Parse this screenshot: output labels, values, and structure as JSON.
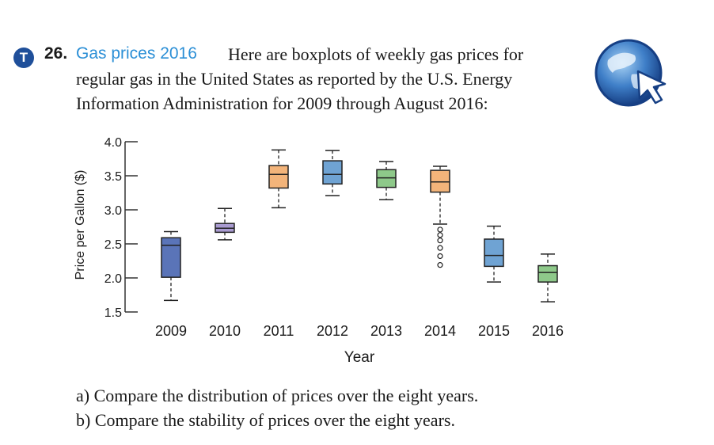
{
  "problem": {
    "badge": "T",
    "number": "26.",
    "title": "Gas prices 2016",
    "intro_line1": "Here are boxplots of weekly gas prices for",
    "intro_line2": "regular gas in the United States as reported by the U.S. Energy",
    "intro_line3": "Information Administration for 2009 through August 2016:",
    "part_a": "a) Compare the distribution of prices over the eight years.",
    "part_b": "b) Compare the stability of prices over the eight years."
  },
  "icons": {
    "globe": "globe-cursor-icon"
  },
  "chart_data": {
    "type": "boxplot",
    "xlabel": "Year",
    "ylabel": "Price per Gallon ($)",
    "ylim": [
      1.5,
      4.0
    ],
    "yticks": [
      "4.0",
      "3.5",
      "3.0",
      "2.5",
      "2.0",
      "1.5"
    ],
    "categories": [
      "2009",
      "2010",
      "2011",
      "2012",
      "2013",
      "2014",
      "2015",
      "2016"
    ],
    "boxes": [
      {
        "year": "2009",
        "min": 1.67,
        "q1": 2.01,
        "median": 2.48,
        "q3": 2.59,
        "max": 2.68,
        "outliers": [],
        "color": "#5a74b8"
      },
      {
        "year": "2010",
        "min": 2.56,
        "q1": 2.67,
        "median": 2.73,
        "q3": 2.8,
        "max": 3.02,
        "outliers": [],
        "color": "#a99bd0"
      },
      {
        "year": "2011",
        "min": 3.03,
        "q1": 3.32,
        "median": 3.52,
        "q3": 3.65,
        "max": 3.88,
        "outliers": [],
        "color": "#f3b47a"
      },
      {
        "year": "2012",
        "min": 3.21,
        "q1": 3.38,
        "median": 3.52,
        "q3": 3.72,
        "max": 3.87,
        "outliers": [],
        "color": "#6fa3d3"
      },
      {
        "year": "2013",
        "min": 3.15,
        "q1": 3.33,
        "median": 3.47,
        "q3": 3.59,
        "max": 3.71,
        "outliers": [],
        "color": "#8ec98a"
      },
      {
        "year": "2014",
        "min": 2.79,
        "q1": 3.26,
        "median": 3.41,
        "q3": 3.58,
        "max": 3.64,
        "outliers": [
          2.19,
          2.32,
          2.44,
          2.55,
          2.63,
          2.71
        ],
        "color": "#f3b47a"
      },
      {
        "year": "2015",
        "min": 1.94,
        "q1": 2.17,
        "median": 2.33,
        "q3": 2.57,
        "max": 2.76,
        "outliers": [],
        "color": "#6fa3d3"
      },
      {
        "year": "2016",
        "min": 1.65,
        "q1": 1.94,
        "median": 2.08,
        "q3": 2.18,
        "max": 2.35,
        "outliers": [],
        "color": "#8ec98a"
      }
    ]
  }
}
